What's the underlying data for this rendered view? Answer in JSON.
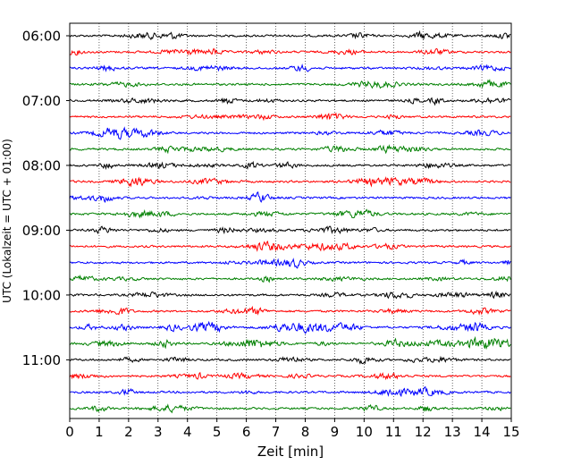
{
  "chart_data": {
    "type": "line",
    "title": "",
    "xlabel": "Zeit  [min]",
    "ylabel": "UTC (Lokalzeit = UTC + 01:00)",
    "xlim": [
      0,
      15
    ],
    "x_ticks": [
      0,
      1,
      2,
      3,
      4,
      5,
      6,
      7,
      8,
      9,
      10,
      11,
      12,
      13,
      14,
      15
    ],
    "x_grid": "dotted vertical lines at each minute",
    "y_tick_labels": [
      "06:00",
      "07:00",
      "08:00",
      "09:00",
      "10:00",
      "11:00"
    ],
    "trace_interval_minutes": 15,
    "start_time": "06:00",
    "trace_count": 24,
    "trace_colors": [
      "#000000",
      "#ff0000",
      "#0000ff",
      "#008000"
    ],
    "legend": "none"
  }
}
